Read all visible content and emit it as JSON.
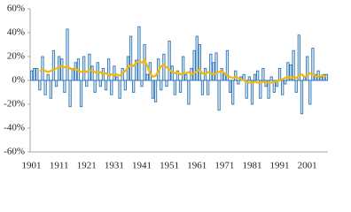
{
  "chart_data": {
    "type": "bar-line",
    "categories": [
      "1901",
      null,
      null,
      null,
      null,
      null,
      null,
      null,
      null,
      null,
      "1911",
      null,
      null,
      null,
      null,
      null,
      null,
      null,
      null,
      null,
      "1921",
      null,
      null,
      null,
      null,
      null,
      null,
      null,
      null,
      null,
      "1931",
      null,
      null,
      null,
      null,
      null,
      null,
      null,
      null,
      null,
      "1941",
      null,
      null,
      null,
      null,
      null,
      null,
      null,
      null,
      null,
      "1951",
      null,
      null,
      null,
      null,
      null,
      null,
      null,
      null,
      null,
      "1961",
      null,
      null,
      null,
      null,
      null,
      null,
      null,
      null,
      null,
      "1971",
      null,
      null,
      null,
      null,
      null,
      null,
      null,
      null,
      null,
      "1981",
      null,
      null,
      null,
      null,
      null,
      null,
      null,
      null,
      null,
      "1991",
      null,
      null,
      null,
      null,
      null,
      null,
      null,
      null,
      null,
      "2001",
      null,
      null,
      null,
      null,
      null,
      null,
      null
    ],
    "series": [
      {
        "type": "bar",
        "color": "#2e75b6",
        "values": [
          8,
          10,
          10,
          -8,
          20,
          -12,
          5,
          -15,
          25,
          -5,
          20,
          18,
          -10,
          43,
          -22,
          10,
          15,
          18,
          -22,
          20,
          -5,
          22,
          12,
          -10,
          15,
          -5,
          10,
          -8,
          18,
          -12,
          12,
          3,
          -15,
          10,
          -8,
          20,
          37,
          -10,
          17,
          45,
          -5,
          30,
          5,
          15,
          -15,
          -18,
          18,
          -8,
          22,
          -5,
          33,
          12,
          -12,
          8,
          -10,
          20,
          5,
          -20,
          10,
          25,
          37,
          30,
          -12,
          10,
          -12,
          22,
          15,
          23,
          -25,
          10,
          5,
          25,
          -10,
          -20,
          8,
          -3,
          3,
          5,
          -15,
          3,
          -20,
          5,
          8,
          -15,
          10,
          -5,
          -15,
          3,
          -10,
          -5,
          10,
          -12,
          -3,
          15,
          13,
          25,
          -10,
          38,
          -28,
          3,
          20,
          -20,
          27,
          5,
          8,
          3,
          5,
          5
        ]
      },
      {
        "type": "line",
        "color": "#f5b800",
        "values": [
          null,
          null,
          null,
          8,
          9,
          8,
          7,
          8,
          9,
          10,
          11,
          12,
          11,
          12,
          10,
          9,
          10,
          8,
          7,
          8,
          7,
          9,
          8,
          7,
          6,
          7,
          5,
          6,
          4,
          5,
          4,
          5,
          4,
          6,
          8,
          11,
          13,
          12,
          15,
          16,
          15,
          17,
          12,
          6,
          3,
          4,
          8,
          12,
          13,
          11,
          9,
          7,
          6,
          7,
          5,
          6,
          6,
          7,
          5,
          6,
          8,
          9,
          6,
          5,
          7,
          6,
          5,
          6,
          7,
          8,
          6,
          4,
          3,
          2,
          3,
          2,
          1,
          0,
          -1,
          -2,
          -2,
          -1,
          -2,
          -2,
          -1,
          -2,
          -2,
          -2,
          -1,
          -1,
          0,
          1,
          2,
          3,
          2,
          3,
          2,
          4,
          5,
          3,
          4,
          6,
          5,
          4,
          3,
          4,
          4,
          3
        ]
      }
    ],
    "ylim": [
      -60,
      60
    ],
    "yticks": [
      {
        "value": -60,
        "label": "-60%"
      },
      {
        "value": -40,
        "label": "-40%"
      },
      {
        "value": -20,
        "label": "-20%"
      },
      {
        "value": 0,
        "label": "0%"
      },
      {
        "value": 20,
        "label": "20%"
      },
      {
        "value": 40,
        "label": "40%"
      },
      {
        "value": 60,
        "label": "60%"
      }
    ]
  }
}
